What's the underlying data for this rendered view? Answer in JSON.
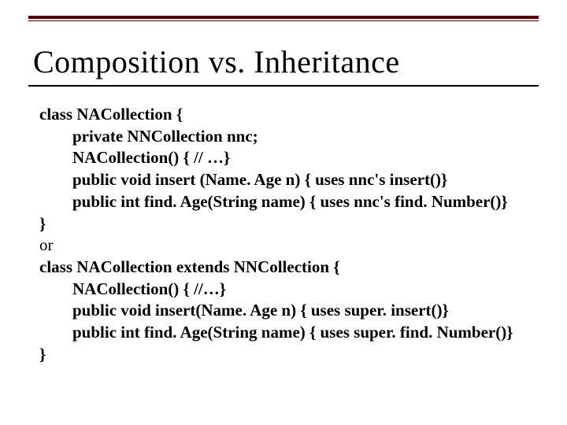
{
  "slide": {
    "title": "Composition vs. Inheritance",
    "top_rule_color": "#4d0000",
    "title_underline_color": "#000000",
    "background_color": "#ffffff",
    "text_color": "#000000",
    "title_fontsize": 40,
    "code_fontsize": 21,
    "code": {
      "l1": "class NACollection {",
      "l2": "private NNCollection nnc;",
      "l3": "NACollection() { // …}",
      "l4": "public void insert (Name. Age n) { uses nnc's insert()}",
      "l5": "public int find. Age(String name) { uses nnc's find. Number()}",
      "l6": "}",
      "l7": "or",
      "l8": "class NACollection extends NNCollection {",
      "l9": "NACollection() { //…}",
      "l10": "public void insert(Name. Age n) { uses super. insert()}",
      "l11": "public int find. Age(String name) { uses super. find. Number()}",
      "l12": "}"
    }
  }
}
